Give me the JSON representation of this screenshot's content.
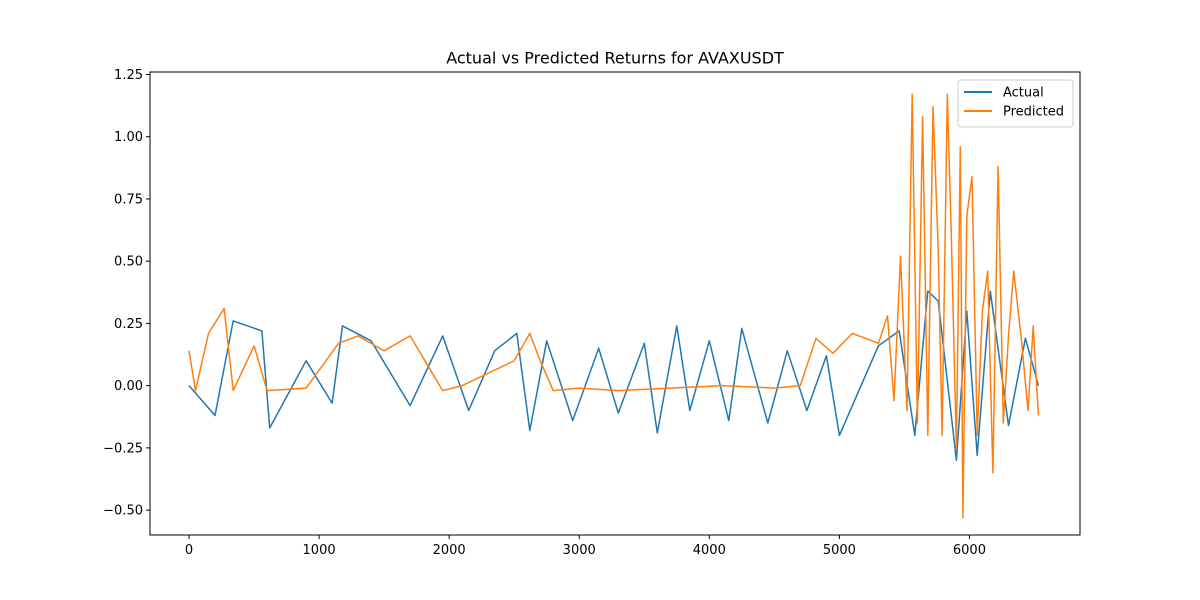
{
  "chart_data": {
    "type": "line",
    "title": "Actual vs Predicted Returns for AVAXUSDT",
    "xlabel": "",
    "ylabel": "",
    "xlim": [
      -300,
      6850
    ],
    "ylim": [
      -0.6,
      1.26
    ],
    "x_ticks": [
      0,
      1000,
      2000,
      3000,
      4000,
      5000,
      6000
    ],
    "x_tick_labels": [
      "0",
      "1000",
      "2000",
      "3000",
      "4000",
      "5000",
      "6000"
    ],
    "y_ticks": [
      -0.5,
      -0.25,
      0.0,
      0.25,
      0.5,
      0.75,
      1.0,
      1.25
    ],
    "y_tick_labels": [
      "−0.50",
      "−0.25",
      "0.00",
      "0.25",
      "0.50",
      "0.75",
      "1.00",
      "1.25"
    ],
    "grid": false,
    "legend": {
      "placement": "top-right",
      "entries": [
        "Actual",
        "Predicted"
      ]
    },
    "series": [
      {
        "name": "Actual",
        "color": "#1f77b4",
        "x": [
          0,
          200,
          340,
          560,
          620,
          900,
          1100,
          1180,
          1400,
          1700,
          1950,
          2150,
          2350,
          2520,
          2620,
          2750,
          2950,
          3150,
          3300,
          3500,
          3600,
          3750,
          3850,
          4000,
          4150,
          4250,
          4450,
          4600,
          4750,
          4900,
          5000,
          5300,
          5460,
          5580,
          5680,
          5760,
          5900,
          5980,
          6060,
          6160,
          6300,
          6430,
          6530
        ],
        "values": [
          0.0,
          -0.12,
          0.26,
          0.22,
          -0.17,
          0.1,
          -0.07,
          0.24,
          0.18,
          -0.08,
          0.2,
          -0.1,
          0.14,
          0.21,
          -0.18,
          0.18,
          -0.14,
          0.15,
          -0.11,
          0.17,
          -0.19,
          0.24,
          -0.1,
          0.18,
          -0.14,
          0.23,
          -0.15,
          0.14,
          -0.1,
          0.12,
          -0.2,
          0.16,
          0.22,
          -0.2,
          0.38,
          0.34,
          -0.3,
          0.3,
          -0.28,
          0.38,
          -0.16,
          0.19,
          0.0
        ]
      },
      {
        "name": "Predicted",
        "color": "#ff7f0e",
        "x": [
          0,
          50,
          150,
          270,
          340,
          500,
          600,
          900,
          1150,
          1300,
          1500,
          1700,
          1950,
          2100,
          2500,
          2620,
          2700,
          2800,
          3000,
          3300,
          3700,
          4100,
          4500,
          4700,
          4820,
          4950,
          5100,
          5200,
          5300,
          5370,
          5420,
          5470,
          5520,
          5560,
          5600,
          5640,
          5680,
          5720,
          5760,
          5790,
          5830,
          5860,
          5900,
          5930,
          5950,
          5980,
          6020,
          6060,
          6100,
          6140,
          6180,
          6220,
          6260,
          6300,
          6340,
          6400,
          6450,
          6490,
          6530
        ],
        "values": [
          0.14,
          -0.02,
          0.21,
          0.31,
          -0.02,
          0.16,
          -0.02,
          -0.01,
          0.17,
          0.2,
          0.14,
          0.2,
          -0.02,
          0.0,
          0.1,
          0.21,
          0.1,
          -0.02,
          -0.01,
          -0.02,
          -0.01,
          0.0,
          -0.01,
          0.0,
          0.19,
          0.13,
          0.21,
          0.19,
          0.17,
          0.28,
          -0.06,
          0.52,
          -0.1,
          1.17,
          -0.15,
          1.08,
          -0.2,
          1.12,
          0.55,
          -0.2,
          1.17,
          0.62,
          -0.25,
          0.96,
          -0.53,
          0.68,
          0.84,
          -0.2,
          0.3,
          0.46,
          -0.35,
          0.88,
          -0.15,
          0.2,
          0.46,
          0.18,
          -0.1,
          0.24,
          -0.12
        ]
      }
    ]
  }
}
